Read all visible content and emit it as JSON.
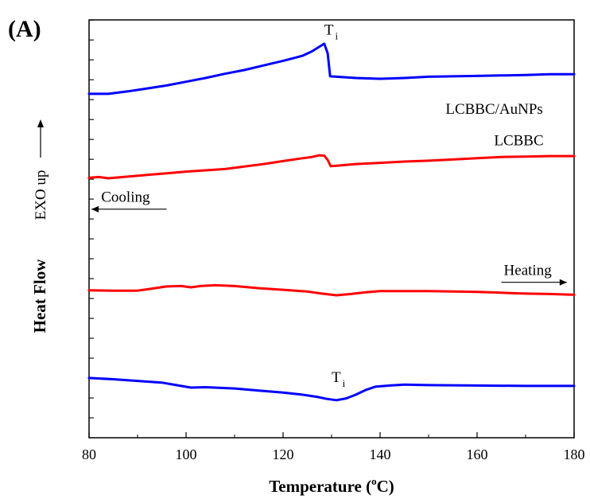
{
  "panel_label": "(A)",
  "chart_data": {
    "type": "line",
    "xlabel_main": "Temperature (",
    "xlabel_sup": "o",
    "xlabel_end": "C)",
    "ylabel_bold": "Heat Flow",
    "ylabel_normal": "EXO up",
    "xlim": [
      80,
      180
    ],
    "ylim": [
      0,
      100
    ],
    "x_ticks": [
      80,
      100,
      120,
      140,
      160,
      180
    ],
    "x_tick_labels": [
      "80",
      "100",
      "120",
      "140",
      "160",
      "180"
    ],
    "y_tick_labels_shown": false,
    "grid": false,
    "series": [
      {
        "name": "LCBBC/AuNPs",
        "color": "#0000ff",
        "mode": "Cooling",
        "points": [
          [
            80,
            82.3
          ],
          [
            84,
            82.3
          ],
          [
            88,
            82.9
          ],
          [
            92,
            83.6
          ],
          [
            96,
            84.3
          ],
          [
            100,
            85.2
          ],
          [
            104,
            86.1
          ],
          [
            108,
            87.1
          ],
          [
            112,
            88.0
          ],
          [
            116,
            89.1
          ],
          [
            120,
            90.2
          ],
          [
            122,
            90.8
          ],
          [
            124,
            91.4
          ],
          [
            126,
            92.5
          ],
          [
            127.5,
            93.6
          ],
          [
            128.5,
            94.3
          ],
          [
            129.2,
            92.0
          ],
          [
            129.7,
            86.5
          ],
          [
            131,
            86.4
          ],
          [
            135,
            86.1
          ],
          [
            140,
            85.9
          ],
          [
            145,
            86.1
          ],
          [
            150,
            86.4
          ],
          [
            155,
            86.5
          ],
          [
            160,
            86.6
          ],
          [
            165,
            86.7
          ],
          [
            170,
            86.8
          ],
          [
            175,
            87.0
          ],
          [
            180,
            87.0
          ]
        ]
      },
      {
        "name": "LCBBC",
        "color": "#ff0000",
        "mode": "Cooling",
        "points": [
          [
            80,
            62.2
          ],
          [
            82,
            62.4
          ],
          [
            84,
            62.1
          ],
          [
            88,
            62.5
          ],
          [
            92,
            62.9
          ],
          [
            96,
            63.3
          ],
          [
            100,
            63.7
          ],
          [
            104,
            64.0
          ],
          [
            108,
            64.3
          ],
          [
            112,
            64.9
          ],
          [
            116,
            65.5
          ],
          [
            120,
            66.2
          ],
          [
            124,
            66.9
          ],
          [
            126,
            67.2
          ],
          [
            127.5,
            67.6
          ],
          [
            128.5,
            67.5
          ],
          [
            129.2,
            66.5
          ],
          [
            129.8,
            65.0
          ],
          [
            131,
            65.1
          ],
          [
            135,
            65.5
          ],
          [
            140,
            65.8
          ],
          [
            145,
            66.1
          ],
          [
            150,
            66.3
          ],
          [
            155,
            66.6
          ],
          [
            160,
            66.9
          ],
          [
            165,
            67.2
          ],
          [
            170,
            67.3
          ],
          [
            175,
            67.4
          ],
          [
            180,
            67.4
          ]
        ]
      },
      {
        "name": "LCBBC",
        "color": "#ff0000",
        "mode": "Heating",
        "points": [
          [
            80,
            35.3
          ],
          [
            85,
            35.2
          ],
          [
            90,
            35.2
          ],
          [
            93,
            35.7
          ],
          [
            96,
            36.2
          ],
          [
            99,
            36.3
          ],
          [
            101,
            36.0
          ],
          [
            103,
            36.3
          ],
          [
            106,
            36.5
          ],
          [
            110,
            36.3
          ],
          [
            115,
            35.8
          ],
          [
            120,
            35.4
          ],
          [
            125,
            35.0
          ],
          [
            128,
            34.5
          ],
          [
            131,
            34.1
          ],
          [
            134,
            34.4
          ],
          [
            137,
            34.8
          ],
          [
            140,
            35.1
          ],
          [
            145,
            35.1
          ],
          [
            150,
            35.1
          ],
          [
            155,
            35.0
          ],
          [
            160,
            34.9
          ],
          [
            165,
            34.7
          ],
          [
            170,
            34.5
          ],
          [
            175,
            34.4
          ],
          [
            180,
            34.2
          ]
        ]
      },
      {
        "name": "LCBBC/AuNPs",
        "color": "#0000ff",
        "mode": "Heating",
        "points": [
          [
            80,
            14.3
          ],
          [
            85,
            14.0
          ],
          [
            90,
            13.6
          ],
          [
            95,
            13.2
          ],
          [
            98,
            12.6
          ],
          [
            101,
            12.0
          ],
          [
            104,
            12.1
          ],
          [
            110,
            11.8
          ],
          [
            115,
            11.3
          ],
          [
            120,
            10.8
          ],
          [
            124,
            10.3
          ],
          [
            127,
            9.8
          ],
          [
            129,
            9.3
          ],
          [
            131,
            9.0
          ],
          [
            133,
            9.4
          ],
          [
            135,
            10.3
          ],
          [
            137,
            11.4
          ],
          [
            139,
            12.2
          ],
          [
            142,
            12.5
          ],
          [
            145,
            12.7
          ],
          [
            150,
            12.6
          ],
          [
            160,
            12.5
          ],
          [
            170,
            12.4
          ],
          [
            180,
            12.4
          ]
        ]
      }
    ],
    "annotations": [
      {
        "text": "T",
        "sub": "i",
        "x": 128.5,
        "y": 96.5
      },
      {
        "text": "LCBBC/AuNPs",
        "x": 153.5,
        "y": 77.5
      },
      {
        "text": "LCBBC",
        "x": 163.5,
        "y": 70.0
      },
      {
        "text": "Cooling",
        "x": 82.5,
        "y": 56.5,
        "arrow_from": 96,
        "arrow_to": 80.5,
        "arrow_y": 54.7
      },
      {
        "text": "Heating",
        "x": 165.5,
        "y": 39.0,
        "arrow_from": 165,
        "arrow_to": 178.5,
        "arrow_y": 37.2
      },
      {
        "text": "T",
        "sub": "i",
        "x": 130.0,
        "y": 13.3
      }
    ]
  }
}
